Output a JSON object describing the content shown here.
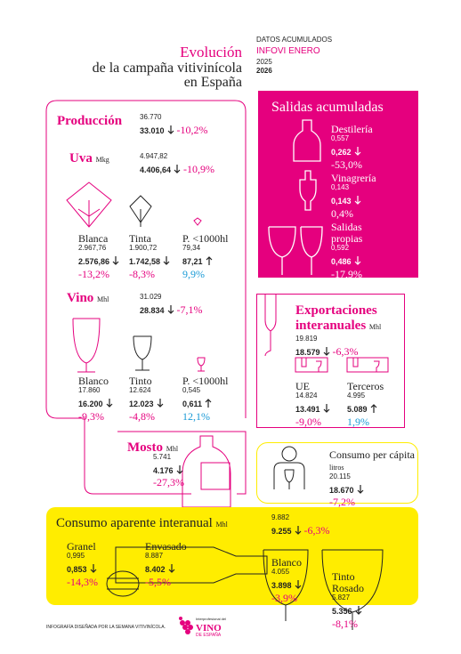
{
  "header": {
    "title_1": "Evolución",
    "title_2": "de la campaña vitivinícola",
    "title_3": "en España",
    "source": "DATOS ACUMULADOS",
    "dataset": "INFOVI ENERO",
    "year_previous": "2025",
    "year_current": "2026"
  },
  "production": {
    "label": "Producción",
    "previous": "36.770",
    "current": "33.010",
    "change": "-10,2%",
    "grapes": {
      "label": "Uva",
      "unit": "Mkg",
      "previous": "4.947,82",
      "current": "4.406,64",
      "change": "-10,9%",
      "items": [
        {
          "label": "Blanca",
          "previous": "2.967,76",
          "current": "2.576,86",
          "change": "-13,2%"
        },
        {
          "label": "Tinta",
          "previous": "1.900,72",
          "current": "1.742,58",
          "change": "-8,3%"
        },
        {
          "label": "P. <1000hl",
          "previous": "79,34",
          "current": "87,21",
          "change": "9,9%"
        }
      ]
    },
    "wine": {
      "label": "Vino",
      "unit": "Mhl",
      "previous": "31.029",
      "current": "28.834",
      "change": "-7,1%",
      "items": [
        {
          "label": "Blanco",
          "previous": "17.860",
          "current": "16.200",
          "change": "-9,3%"
        },
        {
          "label": "Tinto",
          "previous": "12.624",
          "current": "12.023",
          "change": "-4,8%"
        },
        {
          "label": "P. <1000hl",
          "previous": "0,545",
          "current": "0,611",
          "change": "12,1%"
        }
      ]
    },
    "must": {
      "label": "Mosto",
      "unit": "Mhl",
      "previous": "5.741",
      "current": "4.176",
      "change": "-27,3%"
    }
  },
  "outputs": {
    "title": "Salidas acumuladas",
    "items": [
      {
        "label": "Destilería",
        "previous": "0,557",
        "current": "0,262",
        "change": "-53,0%"
      },
      {
        "label": "Vinagrería",
        "previous": "0,143",
        "current": "0,143",
        "change": "0,4%"
      },
      {
        "label": "Salidas propias",
        "previous": "0,592",
        "current": "0,486",
        "change": "-17,9%"
      }
    ]
  },
  "exports": {
    "title": "Exportaciones interanuales",
    "unit": "Mhl",
    "previous": "19.819",
    "current": "18.579",
    "change": "-6,3%",
    "items": [
      {
        "label": "UE",
        "previous": "14.824",
        "current": "13.491",
        "change": "-9,0%"
      },
      {
        "label": "Terceros",
        "previous": "4.995",
        "current": "5.089",
        "change": "1,9%"
      }
    ]
  },
  "per_capita": {
    "title": "Consumo per cápita",
    "unit": "litros",
    "previous": "20.115",
    "current": "18.670",
    "change": "-7,2%"
  },
  "consumption": {
    "title": "Consumo aparente interanual",
    "unit": "Mhl",
    "previous": "9.882",
    "current": "9.255",
    "change": "-6,3%",
    "items": [
      {
        "label": "Granel",
        "previous": "0,995",
        "current": "0,853",
        "change": "-14,3%"
      },
      {
        "label": "Envasado",
        "previous": "8.887",
        "current": "8.402",
        "change": "-5,5%"
      },
      {
        "label": "Blanco",
        "previous": "4.055",
        "current": "3.898",
        "change": "-3,9%"
      },
      {
        "label": "Tinto Rosado",
        "previous": "5.827",
        "current": "5.356",
        "change": "-8,1%"
      }
    ]
  },
  "footer": {
    "credit": "INFOGRAFÍA DISEÑADA POR LA SEMANA VITIVINÍCOLA.",
    "logo_small": "Interprofesional del",
    "logo_main": "VINO",
    "logo_sub": "DE ESPAÑA"
  }
}
